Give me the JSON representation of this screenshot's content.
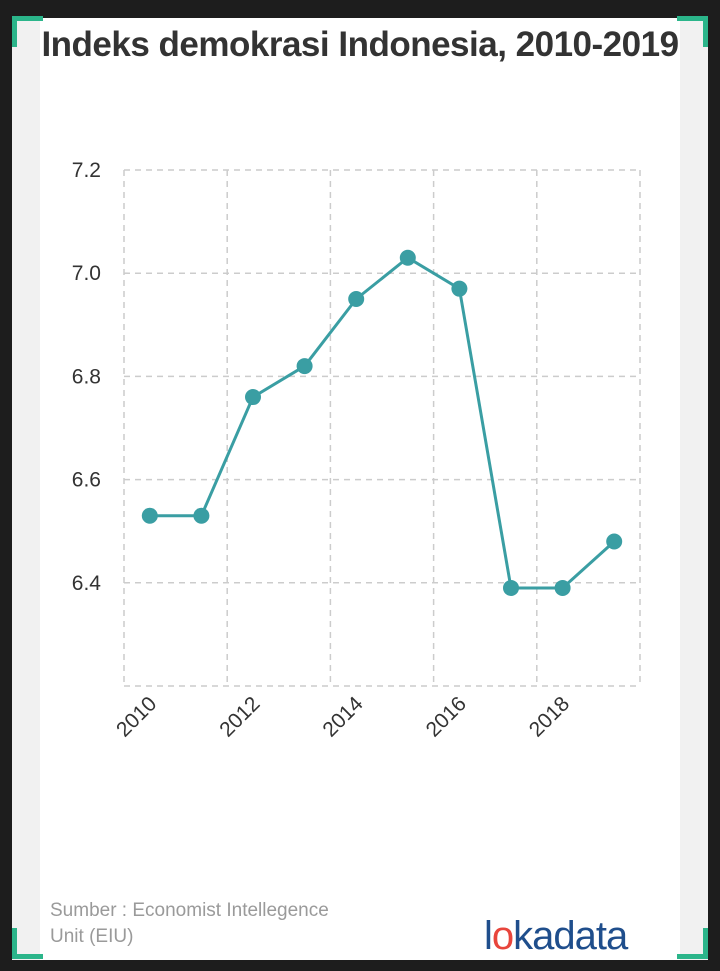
{
  "title": "Indeks demokrasi Indonesia, 2010-2019",
  "source": "Sumber : Economist Intellegence Unit (EIU)",
  "logo": {
    "pre": "l",
    "mark": "o",
    "post": "kadata"
  },
  "colors": {
    "line": "#3a9ea3",
    "grid": "#cccccc",
    "accent": "#2bb58a",
    "logo": "#1f4e8c"
  },
  "chart_data": {
    "type": "line",
    "title": "Indeks demokrasi Indonesia, 2010-2019",
    "x": [
      2010,
      2011,
      2012,
      2013,
      2014,
      2015,
      2016,
      2017,
      2018,
      2019
    ],
    "series": [
      {
        "values": [
          6.53,
          6.53,
          6.76,
          6.82,
          6.95,
          7.03,
          6.97,
          6.39,
          6.39,
          6.48
        ]
      }
    ],
    "x_ticks": [
      "2010",
      "2012",
      "2014",
      "2016",
      "2018"
    ],
    "y_ticks": [
      "6.4",
      "6.6",
      "6.8",
      "7.0",
      "7.2"
    ],
    "ylim": [
      6.2,
      7.2
    ],
    "grid": true
  }
}
